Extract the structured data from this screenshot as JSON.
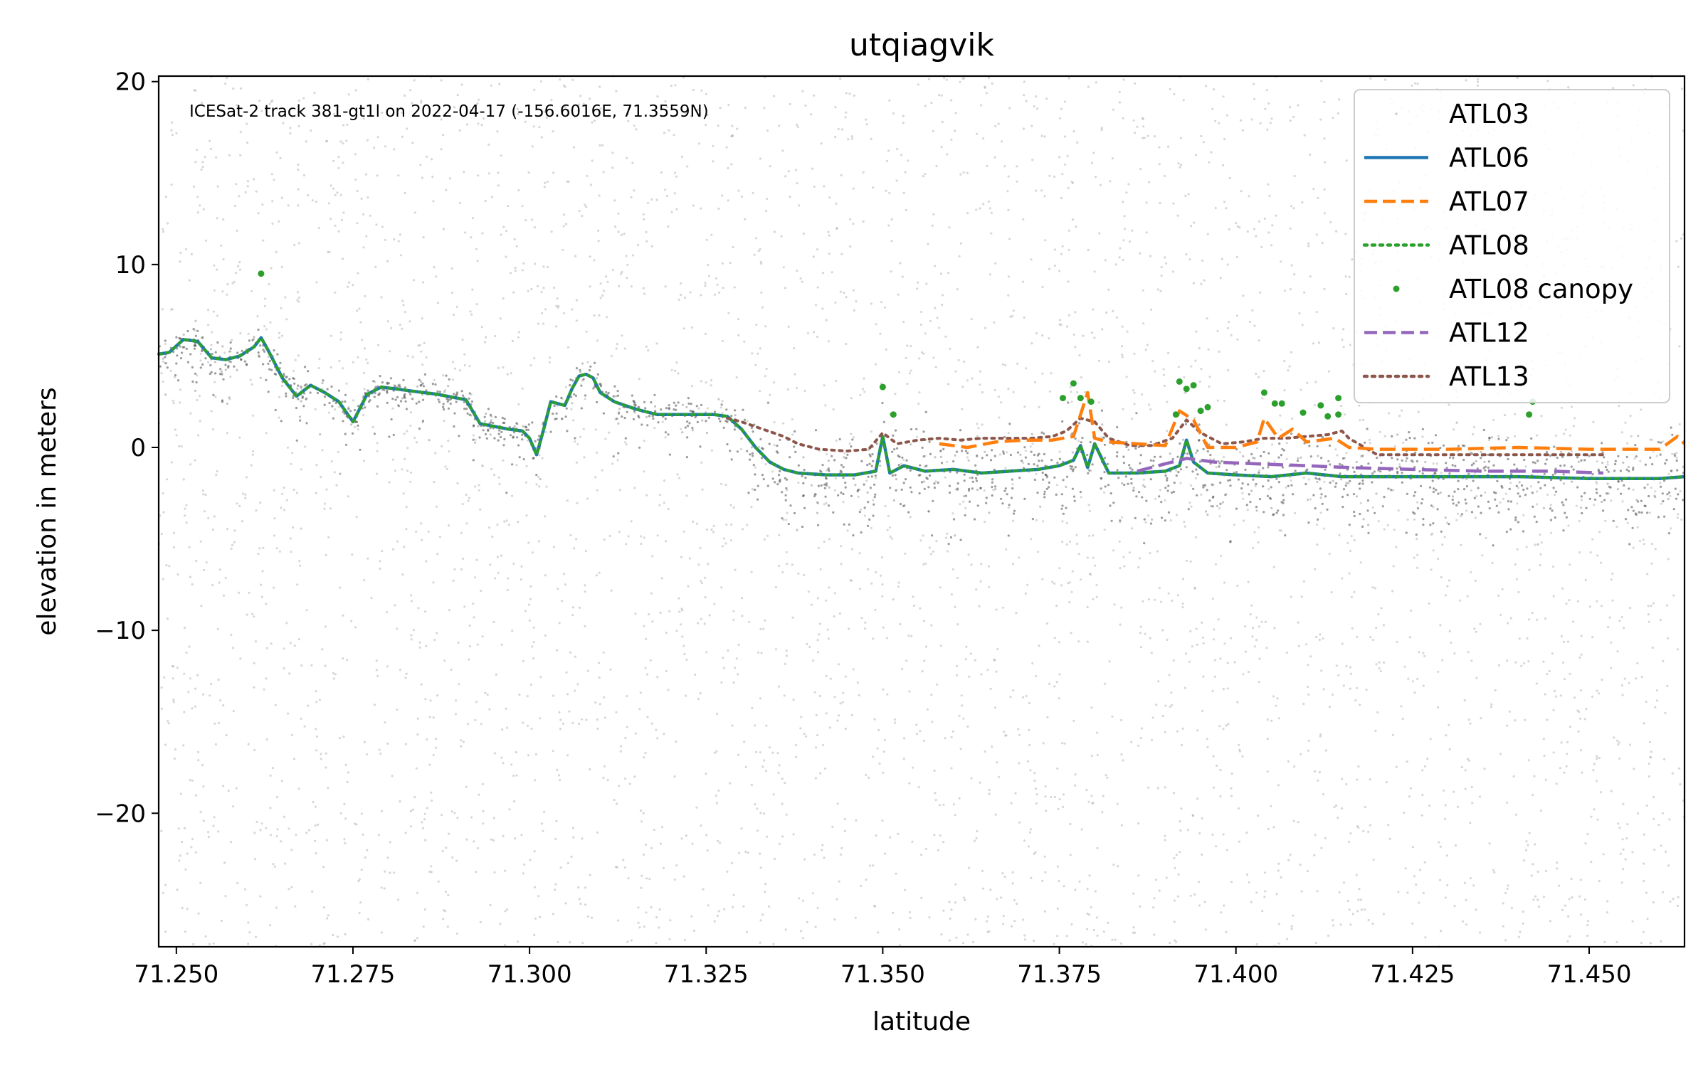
{
  "chart_data": {
    "type": "line",
    "title": "utqiagvik",
    "xlabel": "latitude",
    "ylabel": "elevation in meters",
    "annotation": "ICESat-2 track 381-gt1l on 2022-04-17 (-156.6016E, 71.3559N)",
    "xlim": [
      71.2475,
      71.4635
    ],
    "ylim": [
      -27.3,
      20.3
    ],
    "x_ticks": [
      71.25,
      71.275,
      71.3,
      71.325,
      71.35,
      71.375,
      71.4,
      71.425,
      71.45
    ],
    "x_tick_labels": [
      "71.250",
      "71.275",
      "71.300",
      "71.325",
      "71.350",
      "71.375",
      "71.400",
      "71.425",
      "71.450"
    ],
    "y_ticks": [
      20,
      10,
      0,
      -10,
      -20
    ],
    "y_tick_labels": [
      "20",
      "10",
      "0",
      "−10",
      "−20"
    ],
    "grid": false,
    "legend_position": "top-right",
    "series": [
      {
        "name": "ATL03",
        "kind": "scatter",
        "color": "#8c8c8c",
        "note_count": 6000
      },
      {
        "name": "ATL06",
        "kind": "line",
        "style": "solid",
        "color": "#1f77b4",
        "x": [
          71.2475,
          71.249,
          71.251,
          71.253,
          71.255,
          71.257,
          71.259,
          71.261,
          71.262,
          71.263,
          71.265,
          71.267,
          71.269,
          71.271,
          71.273,
          71.275,
          71.277,
          71.279,
          71.283,
          71.287,
          71.291,
          71.293,
          71.297,
          71.299,
          71.3,
          71.301,
          71.302,
          71.303,
          71.305,
          71.306,
          71.307,
          71.308,
          71.309,
          71.31,
          71.312,
          71.315,
          71.318,
          71.322,
          71.326,
          71.328,
          71.33,
          71.332,
          71.334,
          71.336,
          71.338,
          71.342,
          71.346,
          71.349,
          71.35,
          71.351,
          71.353,
          71.356,
          71.36,
          71.364,
          71.368,
          71.372,
          71.375,
          71.377,
          71.378,
          71.379,
          71.38,
          71.382,
          71.386,
          71.39,
          71.392,
          71.393,
          71.394,
          71.396,
          71.4,
          71.405,
          71.41,
          71.415,
          71.42,
          71.43,
          71.44,
          71.45,
          71.46,
          71.4635
        ],
        "y": [
          5.1,
          5.2,
          5.9,
          5.8,
          4.9,
          4.8,
          5.0,
          5.5,
          6.0,
          5.3,
          3.8,
          2.8,
          3.4,
          3.0,
          2.5,
          1.4,
          2.9,
          3.3,
          3.1,
          2.9,
          2.6,
          1.3,
          1.0,
          0.9,
          0.5,
          -0.4,
          1.0,
          2.5,
          2.3,
          3.2,
          3.9,
          4.0,
          3.8,
          3.0,
          2.5,
          2.1,
          1.8,
          1.8,
          1.8,
          1.7,
          1.0,
          0.0,
          -0.8,
          -1.2,
          -1.4,
          -1.5,
          -1.5,
          -1.3,
          0.6,
          -1.4,
          -1.0,
          -1.3,
          -1.2,
          -1.4,
          -1.3,
          -1.2,
          -1.0,
          -0.7,
          0.1,
          -1.1,
          0.2,
          -1.4,
          -1.4,
          -1.3,
          -1.0,
          0.4,
          -0.8,
          -1.4,
          -1.5,
          -1.6,
          -1.4,
          -1.6,
          -1.6,
          -1.6,
          -1.6,
          -1.7,
          -1.7,
          -1.6
        ]
      },
      {
        "name": "ATL07",
        "kind": "line",
        "style": "dashed",
        "color": "#ff7f0e",
        "x": [
          71.358,
          71.362,
          71.366,
          71.37,
          71.374,
          71.377,
          71.379,
          71.38,
          71.382,
          71.386,
          71.39,
          71.392,
          71.394,
          71.396,
          71.4,
          71.403,
          71.404,
          71.406,
          71.408,
          71.41,
          71.414,
          71.416,
          71.42,
          71.43,
          71.44,
          71.45,
          71.46,
          71.4625,
          71.4635
        ],
        "y": [
          0.2,
          0.0,
          0.3,
          0.4,
          0.4,
          0.6,
          3.0,
          0.5,
          0.3,
          0.2,
          0.1,
          2.0,
          1.5,
          0.0,
          0.0,
          0.3,
          1.6,
          0.5,
          1.0,
          0.3,
          0.5,
          0.0,
          -0.1,
          -0.1,
          0.0,
          -0.1,
          -0.1,
          0.6,
          0.2
        ]
      },
      {
        "name": "ATL08",
        "kind": "line",
        "style": "dotted",
        "color": "#2ca02c",
        "x": [
          71.2475,
          71.249,
          71.251,
          71.253,
          71.255,
          71.257,
          71.259,
          71.261,
          71.262,
          71.263,
          71.265,
          71.267,
          71.269,
          71.271,
          71.273,
          71.275,
          71.277,
          71.279,
          71.283,
          71.287,
          71.291,
          71.293,
          71.297,
          71.299,
          71.3,
          71.301,
          71.302,
          71.303,
          71.305,
          71.306,
          71.307,
          71.308,
          71.309,
          71.31,
          71.312,
          71.315,
          71.318,
          71.322,
          71.326,
          71.328,
          71.33,
          71.332,
          71.334,
          71.336,
          71.338,
          71.342,
          71.346,
          71.349,
          71.35,
          71.351,
          71.353,
          71.356,
          71.36,
          71.364,
          71.368,
          71.372,
          71.375,
          71.377,
          71.378,
          71.379,
          71.38,
          71.382,
          71.386,
          71.39,
          71.392,
          71.393,
          71.394,
          71.396,
          71.4,
          71.405,
          71.41,
          71.415,
          71.42,
          71.43,
          71.44,
          71.45,
          71.46,
          71.4635
        ],
        "y": [
          5.1,
          5.2,
          5.9,
          5.8,
          4.9,
          4.8,
          5.0,
          5.5,
          6.0,
          5.3,
          3.8,
          2.8,
          3.4,
          3.0,
          2.5,
          1.4,
          2.9,
          3.3,
          3.1,
          2.9,
          2.6,
          1.3,
          1.0,
          0.9,
          0.5,
          -0.4,
          1.0,
          2.5,
          2.3,
          3.2,
          3.9,
          4.0,
          3.8,
          3.0,
          2.5,
          2.1,
          1.8,
          1.8,
          1.8,
          1.7,
          1.0,
          0.0,
          -0.8,
          -1.2,
          -1.4,
          -1.5,
          -1.5,
          -1.3,
          0.6,
          -1.4,
          -1.0,
          -1.3,
          -1.2,
          -1.4,
          -1.3,
          -1.2,
          -1.0,
          -0.7,
          0.1,
          -1.1,
          0.2,
          -1.4,
          -1.4,
          -1.3,
          -1.0,
          0.4,
          -0.8,
          -1.4,
          -1.5,
          -1.6,
          -1.4,
          -1.6,
          -1.6,
          -1.6,
          -1.6,
          -1.7,
          -1.7,
          -1.6
        ]
      },
      {
        "name": "ATL08 canopy",
        "kind": "scatter",
        "color": "#2ca02c",
        "x": [
          71.262,
          71.35,
          71.3515,
          71.3755,
          71.377,
          71.378,
          71.3795,
          71.3915,
          71.392,
          71.393,
          71.394,
          71.395,
          71.396,
          71.404,
          71.4055,
          71.4065,
          71.4095,
          71.412,
          71.413,
          71.4145,
          71.4145,
          71.4415,
          71.442
        ],
        "y": [
          9.5,
          3.3,
          1.8,
          2.7,
          3.5,
          2.7,
          2.5,
          1.8,
          3.6,
          3.2,
          3.4,
          2.0,
          2.2,
          3.0,
          2.4,
          2.4,
          1.9,
          2.3,
          1.7,
          1.8,
          2.7,
          1.8,
          2.5
        ]
      },
      {
        "name": "ATL12",
        "kind": "line",
        "style": "dashed",
        "color": "#9467bd",
        "x": [
          71.386,
          71.39,
          71.393,
          71.397,
          71.403,
          71.41,
          71.416,
          71.425,
          71.435,
          71.445,
          71.452
        ],
        "y": [
          -1.3,
          -0.9,
          -0.6,
          -0.8,
          -0.9,
          -1.0,
          -1.1,
          -1.2,
          -1.3,
          -1.3,
          -1.4
        ]
      },
      {
        "name": "ATL13",
        "kind": "line",
        "style": "dotted",
        "color": "#8c564b",
        "x": [
          71.328,
          71.33,
          71.333,
          71.336,
          71.338,
          71.341,
          71.345,
          71.348,
          71.35,
          71.352,
          71.355,
          71.358,
          71.361,
          71.364,
          71.367,
          71.371,
          71.374,
          71.376,
          71.378,
          71.38,
          71.382,
          71.385,
          71.388,
          71.391,
          71.393,
          71.395,
          71.398,
          71.401,
          71.404,
          71.407,
          71.41,
          71.413,
          71.415,
          71.416,
          71.42,
          71.43,
          71.44,
          71.45,
          71.452
        ],
        "y": [
          1.6,
          1.4,
          1.0,
          0.6,
          0.2,
          -0.1,
          -0.2,
          -0.1,
          0.8,
          0.2,
          0.4,
          0.5,
          0.4,
          0.5,
          0.5,
          0.5,
          0.6,
          0.9,
          1.6,
          1.4,
          0.5,
          0.1,
          0.1,
          0.5,
          1.5,
          0.8,
          0.2,
          0.3,
          0.5,
          0.5,
          0.6,
          0.7,
          0.9,
          0.5,
          -0.4,
          -0.4,
          -0.4,
          -0.4,
          -0.4
        ]
      }
    ]
  }
}
